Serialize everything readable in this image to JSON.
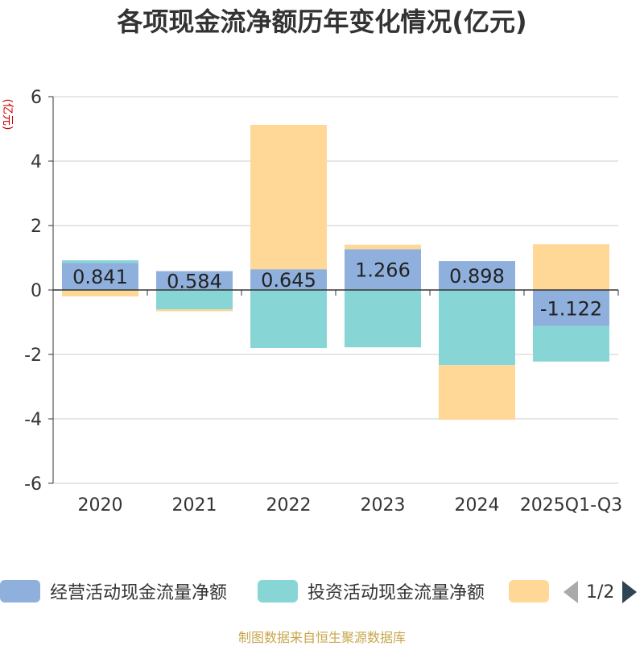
{
  "chart_data": {
    "type": "bar",
    "stacked": true,
    "title": "各项现金流净额历年变化情况(亿元)",
    "ylabel": "(亿元)",
    "ylim": [
      -6,
      6
    ],
    "yticks": [
      6,
      4,
      2,
      0,
      -2,
      -4,
      -6
    ],
    "categories": [
      "2020",
      "2021",
      "2022",
      "2023",
      "2024",
      "2025Q1-Q3"
    ],
    "series": [
      {
        "name": "经营活动现金流量净额",
        "color": "#8fb0dd",
        "values": [
          0.841,
          0.584,
          0.645,
          1.266,
          0.898,
          -1.122
        ]
      },
      {
        "name": "投资活动现金流量净额",
        "color": "#88d5d6",
        "values": [
          0.08,
          -0.6,
          -1.8,
          -1.78,
          -2.33,
          -1.1
        ]
      },
      {
        "name": "",
        "color": "#ffd898",
        "values": [
          -0.2,
          -0.06,
          4.48,
          0.14,
          -1.7,
          1.42
        ]
      }
    ],
    "data_labels": [
      "0.841",
      "0.584",
      "0.645",
      "1.266",
      "0.898",
      "-1.122"
    ]
  },
  "legend": {
    "items": [
      {
        "label": "经营活动现金流量净额",
        "color": "#8fb0dd"
      },
      {
        "label": "投资活动现金流量净额",
        "color": "#88d5d6"
      },
      {
        "label": "",
        "color": "#ffd898"
      }
    ],
    "page": "1/2"
  },
  "source": "制图数据来自恒生聚源数据库"
}
